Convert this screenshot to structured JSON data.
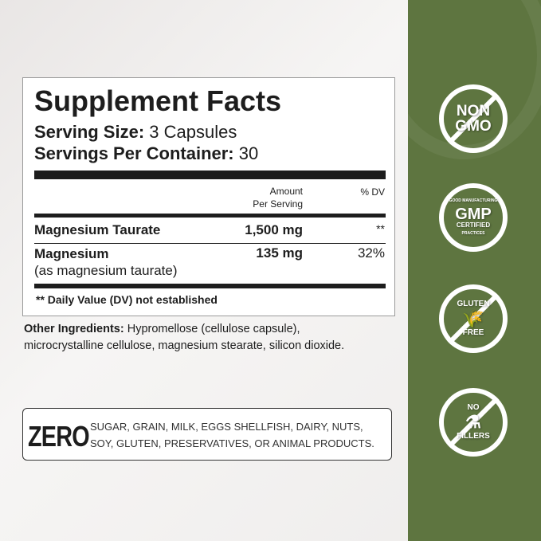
{
  "facts": {
    "title": "Supplement Facts",
    "serving_size_label": "Serving Size:",
    "serving_size_value": "3 Capsules",
    "servings_label": "Servings Per Container:",
    "servings_value": "30",
    "col_amount": "Amount",
    "col_amount2": "Per Serving",
    "col_dv": "% DV",
    "rows": [
      {
        "name": "Magnesium Taurate",
        "sub": "",
        "amount": "1,500 mg",
        "dv": "**"
      },
      {
        "name": "Magnesium",
        "sub": "(as magnesium taurate)",
        "amount": "135 mg",
        "dv": "32%"
      }
    ],
    "footnote": "** Daily Value (DV) not established"
  },
  "other": {
    "label": "Other Ingredients:",
    "line1": "Hypromellose (cellulose capsule),",
    "line2": "microcrystalline cellulose, magnesium stearate, silicon dioxide."
  },
  "zero": {
    "word": "ZERO",
    "line1": "SUGAR, GRAIN, MILK, EGGS SHELLFISH, DAIRY, NUTS,",
    "line2": "SOY, GLUTEN, PRESERVATIVES, OR ANIMAL PRODUCTS."
  },
  "badges": [
    {
      "icon": "non-gmo-icon",
      "l1": "NON",
      "l2": "GMO"
    },
    {
      "icon": "gmp-certified-icon",
      "l0": "GOOD MANUFACTURING",
      "l1": "GMP",
      "l2": "CERTIFIED",
      "l3": "PRACTICES"
    },
    {
      "icon": "gluten-free-icon",
      "l1": "GLUTEN",
      "l2": "FREE"
    },
    {
      "icon": "no-fillers-icon",
      "l1": "NO",
      "l2": "FILLERS"
    }
  ],
  "colors": {
    "panel": "#5e7540"
  }
}
